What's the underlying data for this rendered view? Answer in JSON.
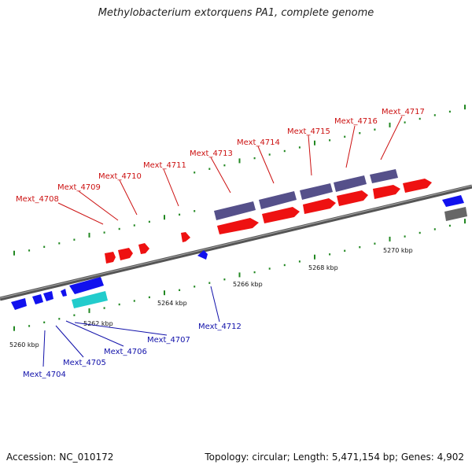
{
  "title": "Methylobacterium extorquens PA1, complete genome",
  "footer": {
    "accession": "Accession: NC_010172",
    "summary": "Topology: circular; Length: 5,471,154 bp; Genes: 4,902"
  },
  "colors": {
    "forward_gene": "#ee1111",
    "reverse_gene": "#1111ee",
    "forward_label": "#cc1111",
    "reverse_label": "#1111aa",
    "rna_feature": "#22cccc",
    "dark_feature": "#55508a",
    "grey_feature": "#666666",
    "tick": "#228822"
  },
  "ruler": {
    "labels": [
      "5260 kbp",
      "5262 kbp",
      "5264 kbp",
      "5266 kbp",
      "5268 kbp",
      "5270 kbp"
    ]
  },
  "forward_genes": [
    "Mext_4708",
    "Mext_4709",
    "Mext_4710",
    "Mext_4711",
    "Mext_4713",
    "Mext_4714",
    "Mext_4715",
    "Mext_4716",
    "Mext_4717"
  ],
  "reverse_genes": [
    "Mext_4704",
    "Mext_4705",
    "Mext_4706",
    "Mext_4707",
    "Mext_4712"
  ]
}
